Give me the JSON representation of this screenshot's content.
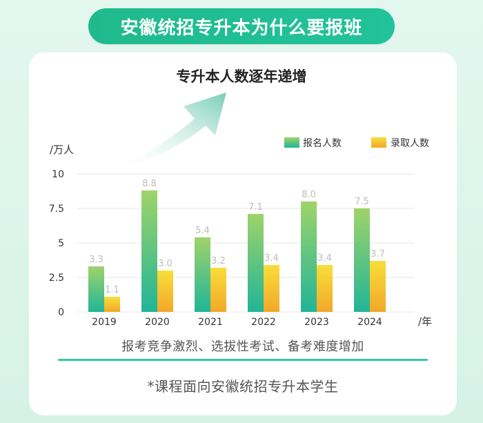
{
  "banner": {
    "title": "安徽统招专升本为什么要报班"
  },
  "chart_data": {
    "type": "bar",
    "title": "专升本人数逐年递增",
    "ylabel": "/万人",
    "xlabel": "/年",
    "categories": [
      "2019",
      "2020",
      "2021",
      "2022",
      "2023",
      "2024"
    ],
    "series": [
      {
        "name": "报名人数",
        "values": [
          3.3,
          8.8,
          5.4,
          7.1,
          8.0,
          7.5
        ],
        "color_top": "#9fd36a",
        "color_bottom": "#21b597"
      },
      {
        "name": "录取人数",
        "values": [
          1.1,
          3.0,
          3.2,
          3.4,
          3.4,
          3.7
        ],
        "color_top": "#f8de3b",
        "color_bottom": "#f2a829"
      }
    ],
    "value_labels": [
      [
        "3.3",
        "8.8",
        "5.4",
        "7.1",
        "8.0",
        "7.5"
      ],
      [
        "1.1",
        "3.0",
        "3.2",
        "3.4",
        "3.4",
        "3.7"
      ]
    ],
    "ylim": [
      0,
      10
    ],
    "yticks": [
      0,
      2.5,
      5,
      7.5,
      10
    ],
    "ytick_labels": [
      "0",
      "2.5",
      "5",
      "7.5",
      "10"
    ],
    "grid": true,
    "legend_position": "top-right"
  },
  "caption": "报考竞争激烈、选拔性考试、备考难度增加",
  "footnote": "*课程面向安徽统招专升本学生"
}
